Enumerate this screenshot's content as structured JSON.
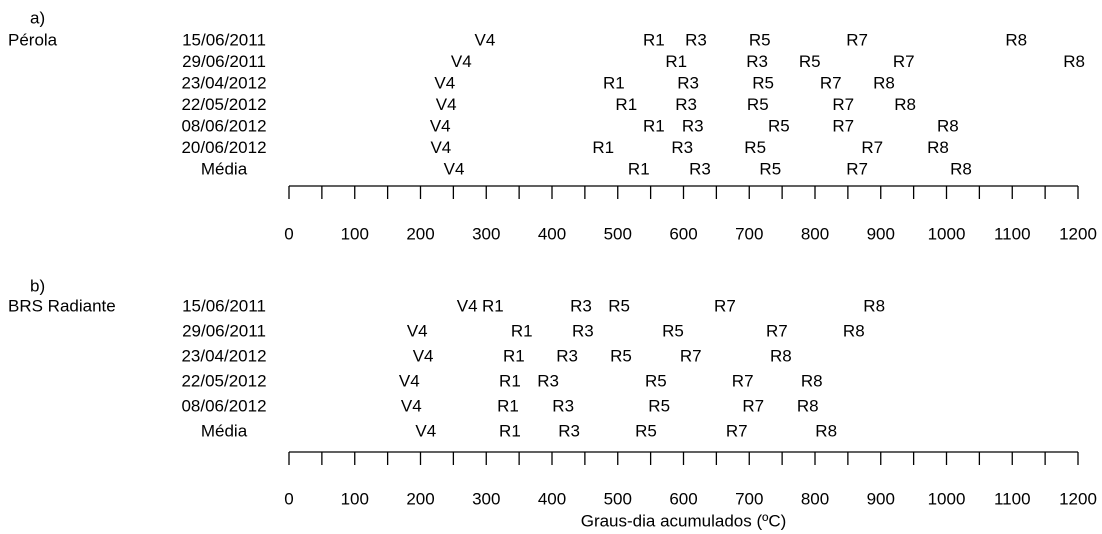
{
  "chart_data": [
    {
      "type": "timeline",
      "panel": "a)",
      "group": "Pérola",
      "categories": [
        "15/06/2011",
        "29/06/2011",
        "23/04/2012",
        "22/05/2012",
        "08/06/2012",
        "20/06/2012",
        "Média"
      ],
      "series": [
        {
          "name": "V4",
          "values": [
            298,
            262,
            237,
            239,
            230,
            231,
            251
          ]
        },
        {
          "name": "R1",
          "values": [
            555,
            589,
            494,
            513,
            555,
            478,
            532
          ]
        },
        {
          "name": "R3",
          "values": [
            619,
            712,
            607,
            604,
            614,
            598,
            625
          ]
        },
        {
          "name": "R5",
          "values": [
            716,
            792,
            721,
            713,
            745,
            709,
            732
          ]
        },
        {
          "name": "R7",
          "values": [
            864,
            935,
            824,
            843,
            843,
            887,
            864
          ]
        },
        {
          "name": "R8",
          "values": [
            1106,
            1194,
            905,
            937,
            1002,
            987,
            1022
          ]
        }
      ],
      "xlim": [
        0,
        1200
      ],
      "xticks": [
        0,
        100,
        200,
        300,
        400,
        500,
        600,
        700,
        800,
        900,
        1000,
        1100,
        1200
      ],
      "xminor": [
        50,
        150,
        250,
        350,
        450,
        550,
        650,
        750,
        850,
        950,
        1050,
        1150
      ]
    },
    {
      "type": "timeline",
      "panel": "b)",
      "group": "BRS Radiante",
      "categories": [
        "15/06/2011",
        "29/06/2011",
        "23/04/2012",
        "22/05/2012",
        "08/06/2012",
        "Média"
      ],
      "series": [
        {
          "name": "V4",
          "values": [
            271,
            195,
            204,
            183,
            186,
            208
          ]
        },
        {
          "name": "R1",
          "values": [
            310,
            354,
            342,
            336,
            333,
            336
          ]
        },
        {
          "name": "R3",
          "values": [
            444,
            447,
            423,
            394,
            417,
            426
          ]
        },
        {
          "name": "R5",
          "values": [
            502,
            584,
            505,
            558,
            563,
            543
          ]
        },
        {
          "name": "R7",
          "values": [
            663,
            742,
            611,
            690,
            706,
            681
          ]
        },
        {
          "name": "R8",
          "values": [
            890,
            859,
            748,
            795,
            789,
            817
          ]
        }
      ],
      "xlim": [
        0,
        1200
      ],
      "xticks": [
        0,
        100,
        200,
        300,
        400,
        500,
        600,
        700,
        800,
        900,
        1000,
        1100,
        1200
      ],
      "xminor": [
        50,
        150,
        250,
        350,
        450,
        550,
        650,
        750,
        850,
        950,
        1050,
        1150
      ],
      "xlabel": "Graus-dia acumulados (ºC)"
    }
  ]
}
